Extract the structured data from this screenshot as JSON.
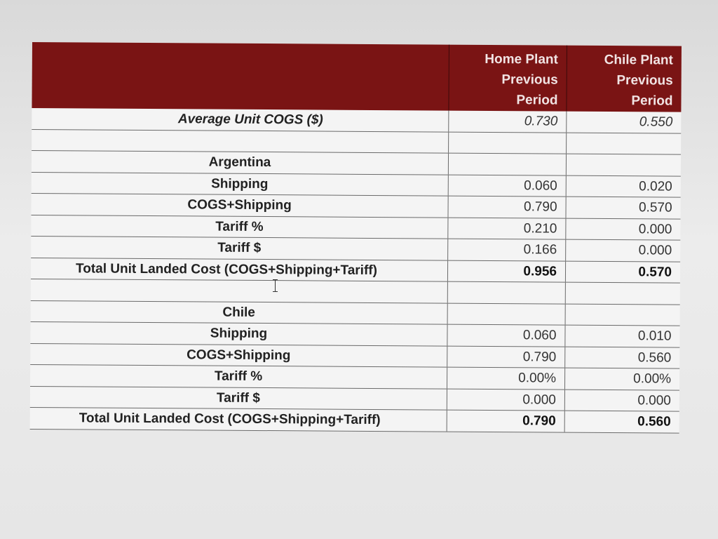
{
  "header": {
    "col1": [
      "Home Plant",
      "Previous",
      "Period"
    ],
    "col2": [
      "Chile Plant",
      "Previous",
      "Period"
    ]
  },
  "rows": [
    {
      "label": "Average Unit COGS ($)",
      "v1": "0.730",
      "v2": "0.550"
    },
    {
      "label": "",
      "v1": "",
      "v2": ""
    },
    {
      "label": "Argentina",
      "v1": "",
      "v2": ""
    },
    {
      "label": "Shipping",
      "v1": "0.060",
      "v2": "0.020"
    },
    {
      "label": "COGS+Shipping",
      "v1": "0.790",
      "v2": "0.570"
    },
    {
      "label": "Tariff %",
      "v1": "0.210",
      "v2": "0.000"
    },
    {
      "label": "Tariff $",
      "v1": "0.166",
      "v2": "0.000"
    },
    {
      "label": "Total Unit Landed Cost (COGS+Shipping+Tariff)",
      "v1": "0.956",
      "v2": "0.570"
    },
    {
      "label": "",
      "v1": "",
      "v2": ""
    },
    {
      "label": "Chile",
      "v1": "",
      "v2": ""
    },
    {
      "label": "Shipping",
      "v1": "0.060",
      "v2": "0.010"
    },
    {
      "label": "COGS+Shipping",
      "v1": "0.790",
      "v2": "0.560"
    },
    {
      "label": "Tariff %",
      "v1": "0.00%",
      "v2": "0.00%"
    },
    {
      "label": "Tariff $",
      "v1": "0.000",
      "v2": "0.000"
    },
    {
      "label": "Total Unit Landed Cost (COGS+Shipping+Tariff)",
      "v1": "0.790",
      "v2": "0.560"
    }
  ]
}
